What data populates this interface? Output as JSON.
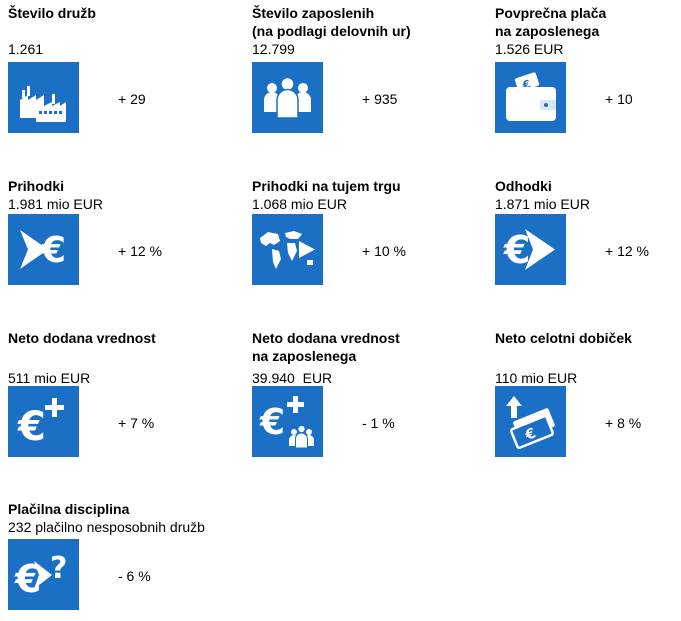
{
  "indicators": [
    {
      "title": "Število družb",
      "value": "1.261",
      "change": "+ 29",
      "icon": "factory-icon"
    },
    {
      "title": "Število zaposlenih\n(na podlagi delovnih ur)",
      "value": "12.799",
      "change": "+ 935",
      "icon": "people-icon"
    },
    {
      "title": "Povprečna plača\nna zaposlenega",
      "value": "1.526 EUR",
      "change": "+ 10",
      "icon": "wallet-icon"
    },
    {
      "title": "Prihodki",
      "value": "1.981 mio EUR",
      "change": "+ 12 %",
      "icon": "revenue-arrow-euro-icon"
    },
    {
      "title": "Prihodki na tujem trgu",
      "value": "1.068 mio EUR",
      "change": "+ 10 %",
      "icon": "world-map-arrow-icon"
    },
    {
      "title": "Odhodki",
      "value": "1.871 mio EUR",
      "change": "+ 12 %",
      "icon": "expense-euro-arrow-icon"
    },
    {
      "title": "Neto dodana vrednost",
      "value": "511 mio EUR",
      "change": "+ 7 %",
      "icon": "euro-plus-icon"
    },
    {
      "title": "Neto dodana vrednost\nna zaposlenega",
      "value": "39.940  EUR",
      "change": "- 1 %",
      "icon": "euro-plus-people-icon"
    },
    {
      "title": "Neto celotni dobiček",
      "value": "110 mio EUR",
      "change": "+ 8 %",
      "icon": "banknotes-up-icon"
    },
    {
      "title": "Plačilna disciplina",
      "value": "232 plačilno nesposobnih družb",
      "change": "- 6 %",
      "icon": "euro-question-icon"
    }
  ],
  "colors": {
    "tile": "#1b6fc4",
    "icon": "#ffffff"
  }
}
